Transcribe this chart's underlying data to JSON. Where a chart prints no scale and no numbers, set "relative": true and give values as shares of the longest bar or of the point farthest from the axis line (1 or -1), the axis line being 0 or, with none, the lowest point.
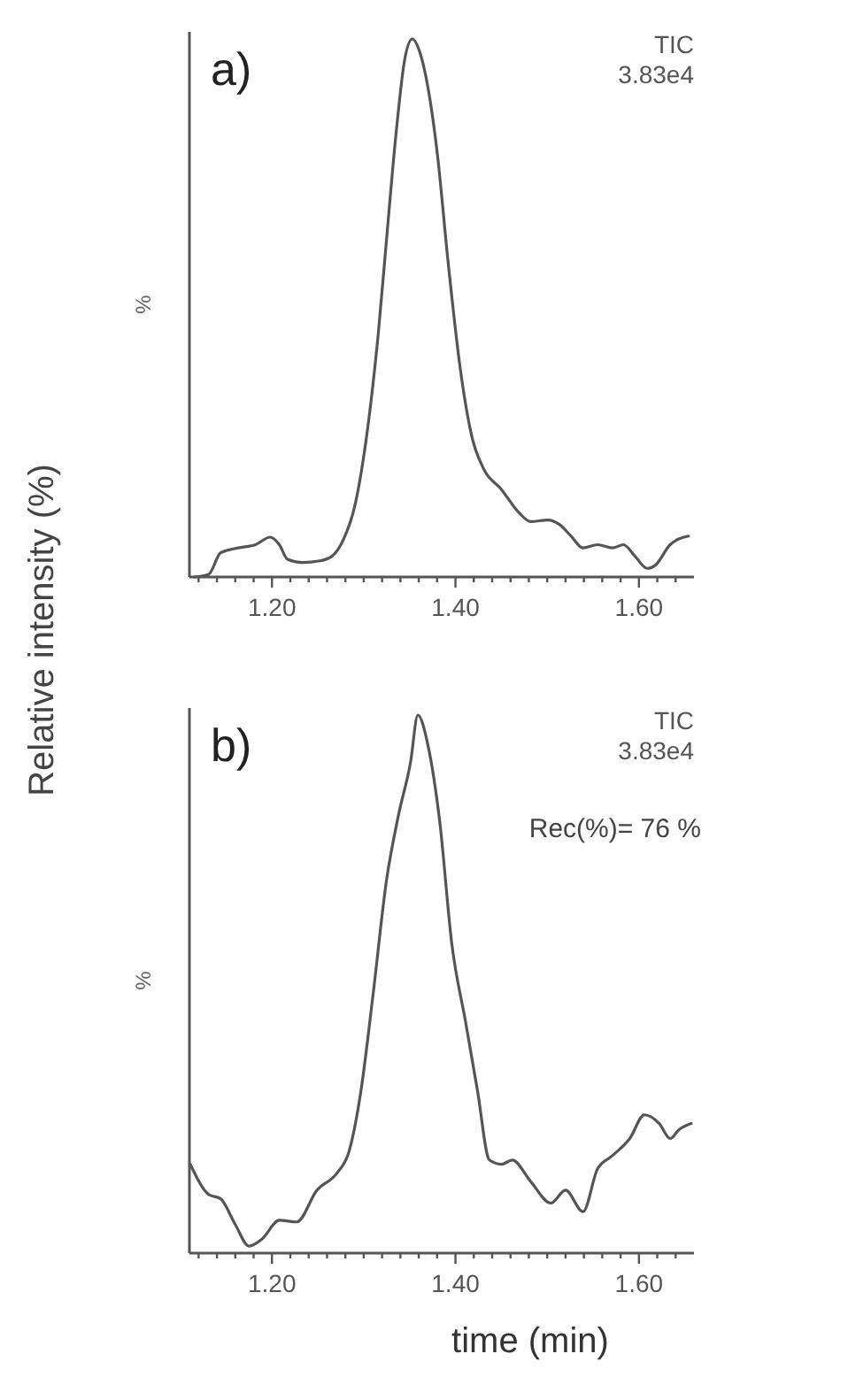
{
  "chart_data": [
    {
      "type": "line",
      "title": "a)",
      "ylabel": "%",
      "relative": true,
      "annotations": [
        "TIC",
        "3.83e4",
        "Relative intensity (%)"
      ],
      "xlim": [
        1.11,
        1.66
      ],
      "xticks": [
        {
          "value": 1.12,
          "label": null
        },
        {
          "value": 1.14,
          "label": null
        },
        {
          "value": 1.16,
          "label": null
        },
        {
          "value": 1.18,
          "label": null
        },
        {
          "value": 1.2,
          "label": "1.20"
        },
        {
          "value": 1.22,
          "label": null
        },
        {
          "value": 1.24,
          "label": null
        },
        {
          "value": 1.26,
          "label": null
        },
        {
          "value": 1.28,
          "label": null
        },
        {
          "value": 1.3,
          "label": null
        },
        {
          "value": 1.32,
          "label": null
        },
        {
          "value": 1.34,
          "label": null
        },
        {
          "value": 1.36,
          "label": null
        },
        {
          "value": 1.38,
          "label": null
        },
        {
          "value": 1.4,
          "label": "1.40"
        },
        {
          "value": 1.42,
          "label": null
        },
        {
          "value": 1.44,
          "label": null
        },
        {
          "value": 1.46,
          "label": null
        },
        {
          "value": 1.48,
          "label": null
        },
        {
          "value": 1.5,
          "label": null
        },
        {
          "value": 1.52,
          "label": null
        },
        {
          "value": 1.54,
          "label": null
        },
        {
          "value": 1.56,
          "label": null
        },
        {
          "value": 1.58,
          "label": null
        },
        {
          "value": 1.6,
          "label": "1.60"
        },
        {
          "value": 1.62,
          "label": null
        },
        {
          "value": 1.64,
          "label": null
        }
      ],
      "series": [
        {
          "color": "#555555",
          "x": [
            1.115,
            1.131,
            1.144,
            1.163,
            1.182,
            1.198,
            1.208,
            1.217,
            1.233,
            1.252,
            1.265,
            1.278,
            1.29,
            1.303,
            1.316,
            1.325,
            1.335,
            1.345,
            1.353,
            1.361,
            1.37,
            1.38,
            1.392,
            1.405,
            1.418,
            1.431,
            1.45,
            1.469,
            1.482,
            1.501,
            1.513,
            1.526,
            1.539,
            1.555,
            1.571,
            1.583,
            1.596,
            1.609,
            1.618,
            1.634,
            1.654
          ],
          "values": [
            0.0,
            0.005,
            0.045,
            0.054,
            0.06,
            0.074,
            0.06,
            0.033,
            0.027,
            0.03,
            0.038,
            0.07,
            0.13,
            0.26,
            0.455,
            0.63,
            0.82,
            0.965,
            1.0,
            0.976,
            0.91,
            0.79,
            0.585,
            0.39,
            0.26,
            0.2,
            0.163,
            0.12,
            0.103,
            0.106,
            0.098,
            0.076,
            0.054,
            0.06,
            0.054,
            0.06,
            0.038,
            0.016,
            0.022,
            0.06,
            0.076
          ]
        }
      ]
    },
    {
      "type": "line",
      "title": "b)",
      "ylabel": "%",
      "xlabel": "time (min)",
      "relative": true,
      "annotations": [
        "TIC",
        "3.83e4",
        "Rec(%)= 76 %"
      ],
      "xlim": [
        1.11,
        1.66
      ],
      "xticks": [
        {
          "value": 1.12,
          "label": null
        },
        {
          "value": 1.14,
          "label": null
        },
        {
          "value": 1.16,
          "label": null
        },
        {
          "value": 1.18,
          "label": null
        },
        {
          "value": 1.2,
          "label": "1.20"
        },
        {
          "value": 1.22,
          "label": null
        },
        {
          "value": 1.24,
          "label": null
        },
        {
          "value": 1.26,
          "label": null
        },
        {
          "value": 1.28,
          "label": null
        },
        {
          "value": 1.3,
          "label": null
        },
        {
          "value": 1.32,
          "label": null
        },
        {
          "value": 1.34,
          "label": null
        },
        {
          "value": 1.36,
          "label": null
        },
        {
          "value": 1.38,
          "label": null
        },
        {
          "value": 1.4,
          "label": "1.40"
        },
        {
          "value": 1.42,
          "label": null
        },
        {
          "value": 1.44,
          "label": null
        },
        {
          "value": 1.46,
          "label": null
        },
        {
          "value": 1.48,
          "label": null
        },
        {
          "value": 1.5,
          "label": null
        },
        {
          "value": 1.52,
          "label": null
        },
        {
          "value": 1.54,
          "label": null
        },
        {
          "value": 1.56,
          "label": null
        },
        {
          "value": 1.58,
          "label": null
        },
        {
          "value": 1.6,
          "label": "1.60"
        },
        {
          "value": 1.62,
          "label": null
        },
        {
          "value": 1.64,
          "label": null
        }
      ],
      "series": [
        {
          "color": "#555555",
          "x": [
            1.111,
            1.131,
            1.144,
            1.16,
            1.175,
            1.189,
            1.208,
            1.227,
            1.249,
            1.271,
            1.284,
            1.297,
            1.31,
            1.325,
            1.338,
            1.351,
            1.359,
            1.37,
            1.383,
            1.396,
            1.411,
            1.424,
            1.437,
            1.45,
            1.462,
            1.482,
            1.504,
            1.52,
            1.539,
            1.555,
            1.571,
            1.59,
            1.606,
            1.622,
            1.634,
            1.644,
            1.657
          ],
          "values": [
            0.165,
            0.109,
            0.101,
            0.053,
            0.013,
            0.026,
            0.061,
            0.058,
            0.117,
            0.149,
            0.189,
            0.302,
            0.478,
            0.695,
            0.815,
            0.912,
            1.0,
            0.944,
            0.8,
            0.575,
            0.43,
            0.302,
            0.173,
            0.165,
            0.173,
            0.133,
            0.093,
            0.117,
            0.077,
            0.157,
            0.181,
            0.213,
            0.257,
            0.241,
            0.213,
            0.23,
            0.241
          ]
        }
      ]
    }
  ]
}
